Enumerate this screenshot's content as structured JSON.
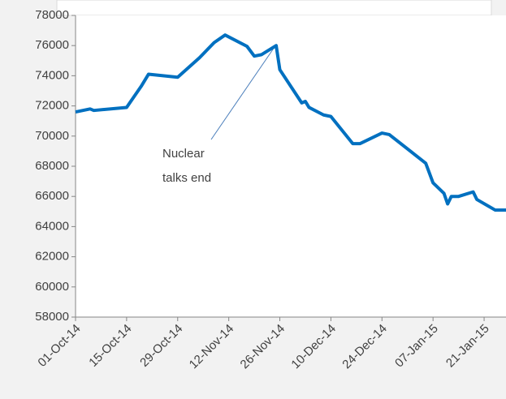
{
  "chart_data": {
    "type": "line",
    "x": [
      "2014-10-01",
      "2014-10-05",
      "2014-10-06",
      "2014-10-15",
      "2014-10-19",
      "2014-10-21",
      "2014-10-29",
      "2014-11-04",
      "2014-11-08",
      "2014-11-11",
      "2014-11-17",
      "2014-11-19",
      "2014-11-21",
      "2014-11-25",
      "2014-11-26",
      "2014-12-02",
      "2014-12-03",
      "2014-12-04",
      "2014-12-08",
      "2014-12-10",
      "2014-12-16",
      "2014-12-18",
      "2014-12-24",
      "2014-12-26",
      "2015-01-05",
      "2015-01-07",
      "2015-01-10",
      "2015-01-11",
      "2015-01-12",
      "2015-01-14",
      "2015-01-18",
      "2015-01-19",
      "2015-01-24",
      "2015-01-27"
    ],
    "series": [
      {
        "name": null,
        "color": "#0070c0",
        "values": [
          71600,
          71800,
          71700,
          71900,
          73300,
          74100,
          73900,
          75200,
          76200,
          76700,
          75950,
          75300,
          75400,
          76000,
          74400,
          72200,
          72300,
          71900,
          71400,
          71300,
          69500,
          69500,
          70200,
          70100,
          68200,
          66900,
          66200,
          65500,
          66000,
          66000,
          66300,
          65800,
          65100,
          65100
        ]
      }
    ],
    "xlim": [
      "2014-10-01",
      "2015-01-27"
    ],
    "xticks": [
      {
        "value": "2014-10-01",
        "label": "01-Oct-14"
      },
      {
        "value": "2014-10-15",
        "label": "15-Oct-14"
      },
      {
        "value": "2014-10-29",
        "label": "29-Oct-14"
      },
      {
        "value": "2014-11-12",
        "label": "12-Nov-14"
      },
      {
        "value": "2014-11-26",
        "label": "26-Nov-14"
      },
      {
        "value": "2014-12-10",
        "label": "10-Dec-14"
      },
      {
        "value": "2014-12-24",
        "label": "24-Dec-14"
      },
      {
        "value": "2015-01-07",
        "label": "07-Jan-15"
      },
      {
        "value": "2015-01-21",
        "label": "21-Jan-15"
      }
    ],
    "ylim": [
      58000,
      78000
    ],
    "yticks": [
      58000,
      60000,
      62000,
      64000,
      66000,
      68000,
      70000,
      72000,
      74000,
      76000,
      78000
    ],
    "annotations": [
      {
        "text": [
          "Nuclear",
          "talks end"
        ]
      }
    ]
  }
}
